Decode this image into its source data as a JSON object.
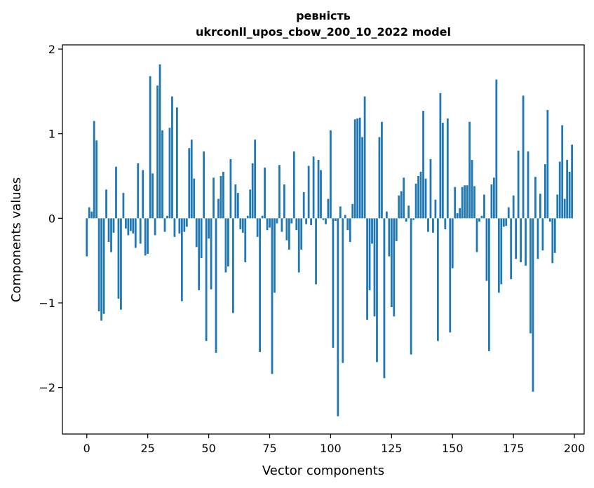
{
  "chart_data": {
    "type": "bar",
    "title": "ревність",
    "subtitle": "ukrconll_upos_cbow_200_10_2022 model",
    "xlabel": "Vector components",
    "ylabel": "Components values",
    "xlim": [
      -10,
      204
    ],
    "ylim": [
      -2.55,
      2.05
    ],
    "xticks": [
      0,
      25,
      50,
      75,
      100,
      125,
      150,
      175,
      200
    ],
    "yticks": [
      -2,
      -1,
      0,
      1,
      2
    ],
    "grid": false,
    "bar_color": "#1f77b4",
    "x": [
      0,
      1,
      2,
      3,
      4,
      5,
      6,
      7,
      8,
      9,
      10,
      11,
      12,
      13,
      14,
      15,
      16,
      17,
      18,
      19,
      20,
      21,
      22,
      23,
      24,
      25,
      26,
      27,
      28,
      29,
      30,
      31,
      32,
      33,
      34,
      35,
      36,
      37,
      38,
      39,
      40,
      41,
      42,
      43,
      44,
      45,
      46,
      47,
      48,
      49,
      50,
      51,
      52,
      53,
      54,
      55,
      56,
      57,
      58,
      59,
      60,
      61,
      62,
      63,
      64,
      65,
      66,
      67,
      68,
      69,
      70,
      71,
      72,
      73,
      74,
      75,
      76,
      77,
      78,
      79,
      80,
      81,
      82,
      83,
      84,
      85,
      86,
      87,
      88,
      89,
      90,
      91,
      92,
      93,
      94,
      95,
      96,
      97,
      98,
      99,
      100,
      101,
      102,
      103,
      104,
      105,
      106,
      107,
      108,
      109,
      110,
      111,
      112,
      113,
      114,
      115,
      116,
      117,
      118,
      119,
      120,
      121,
      122,
      123,
      124,
      125,
      126,
      127,
      128,
      129,
      130,
      131,
      132,
      133,
      134,
      135,
      136,
      137,
      138,
      139,
      140,
      141,
      142,
      143,
      144,
      145,
      146,
      147,
      148,
      149,
      150,
      151,
      152,
      153,
      154,
      155,
      156,
      157,
      158,
      159,
      160,
      161,
      162,
      163,
      164,
      165,
      166,
      167,
      168,
      169,
      170,
      171,
      172,
      173,
      174,
      175,
      176,
      177,
      178,
      179,
      180,
      181,
      182,
      183,
      184,
      185,
      186,
      187,
      188,
      189,
      190,
      191,
      192,
      193,
      194,
      195,
      196,
      197,
      198,
      199
    ],
    "values": [
      -0.45,
      0.13,
      0.08,
      1.15,
      0.92,
      -1.1,
      -1.21,
      -1.13,
      0.34,
      -0.28,
      -0.4,
      -0.17,
      0.61,
      -0.95,
      -1.08,
      0.3,
      -0.12,
      -0.2,
      -0.15,
      -0.18,
      -0.35,
      0.65,
      -0.3,
      0.57,
      -0.44,
      -0.42,
      1.68,
      0.53,
      -0.2,
      1.57,
      1.82,
      1.04,
      -0.16,
      0.03,
      1.07,
      1.44,
      -0.22,
      1.31,
      -0.18,
      -0.98,
      -0.16,
      -0.1,
      0.83,
      0.93,
      0.47,
      -0.34,
      -0.85,
      -0.47,
      0.79,
      -1.45,
      -0.24,
      -0.84,
      0.48,
      -1.59,
      0.23,
      0.5,
      0.55,
      -0.64,
      -0.57,
      0.7,
      -1.12,
      0.4,
      0.3,
      -0.13,
      -0.17,
      -0.52,
      0.03,
      0.34,
      0.65,
      0.93,
      -0.22,
      -1.58,
      0.03,
      0.6,
      -0.14,
      -0.11,
      -1.84,
      -0.88,
      -0.06,
      0.63,
      -0.16,
      0.4,
      -0.26,
      -0.37,
      -0.06,
      0.79,
      -0.14,
      -0.64,
      -0.37,
      0.31,
      -0.07,
      0.62,
      -0.08,
      0.73,
      -0.78,
      0.69,
      0.57,
      -0.02,
      -0.07,
      0.23,
      1.04,
      -1.53,
      -0.03,
      -2.34,
      0.14,
      -1.71,
      0.04,
      -0.14,
      -0.28,
      0.17,
      1.17,
      1.18,
      1.19,
      0.96,
      1.44,
      -1.2,
      -0.85,
      -0.3,
      -1.16,
      -1.7,
      0.96,
      1.14,
      -1.89,
      0.08,
      -0.45,
      -1.05,
      -1.16,
      -0.27,
      0.27,
      0.32,
      0.48,
      -0.04,
      0.15,
      -1.61,
      -0.02,
      0.41,
      0.5,
      0.55,
      1.27,
      0.47,
      -0.16,
      0.7,
      -0.17,
      0.22,
      -1.45,
      1.48,
      1.13,
      -0.13,
      1.18,
      -1.35,
      -0.59,
      0.37,
      0.06,
      0.12,
      0.37,
      0.39,
      0.39,
      1.14,
      0.69,
      0.38,
      -0.4,
      -0.04,
      0.03,
      0.28,
      -0.74,
      -1.57,
      0.4,
      0.48,
      1.64,
      -0.88,
      -0.78,
      -0.1,
      -0.09,
      0.13,
      -0.72,
      0.27,
      -0.48,
      0.8,
      -0.52,
      1.45,
      -0.56,
      0.79,
      -1.36,
      -2.05,
      0.49,
      -0.48,
      0.29,
      -0.38,
      0.64,
      1.28,
      -0.04,
      -0.53,
      -0.41,
      0.28,
      0.67,
      1.1,
      0.23,
      0.69,
      0.55,
      0.87
    ]
  }
}
